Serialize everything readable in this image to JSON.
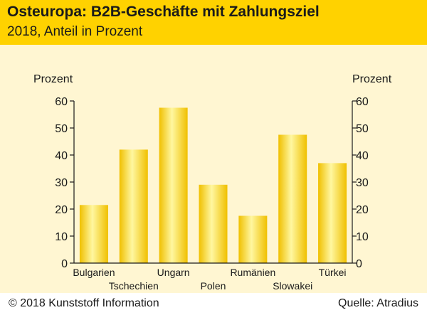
{
  "header": {
    "title": "Osteuropa: B2B-Geschäfte mit Zahlungsziel",
    "subtitle": "2018, Anteil in Prozent"
  },
  "footer": {
    "copyright": "© 2018 Kunststoff Information",
    "source": "Quelle: Atradius"
  },
  "colors": {
    "header_bg": "#ffd200",
    "panel_bg": "#fff6d2",
    "bar_edge": "#f0c000",
    "bar_center": "#fff7a0",
    "axis": "#1a1a1a"
  },
  "chart_data": {
    "type": "bar",
    "title": "Osteuropa: B2B-Geschäfte mit Zahlungsziel",
    "subtitle": "2018, Anteil in Prozent",
    "ylabel_left": "Prozent",
    "ylabel_right": "Prozent",
    "categories": [
      "Bulgarien",
      "Tschechien",
      "Ungarn",
      "Polen",
      "Rumänien",
      "Slowakei",
      "Türkei"
    ],
    "values": [
      21.5,
      42,
      57.5,
      29,
      17.5,
      47.5,
      37
    ],
    "ylim": [
      0,
      60
    ],
    "yticks": [
      0,
      10,
      20,
      30,
      40,
      50,
      60
    ],
    "grid": false,
    "legend": "none"
  }
}
